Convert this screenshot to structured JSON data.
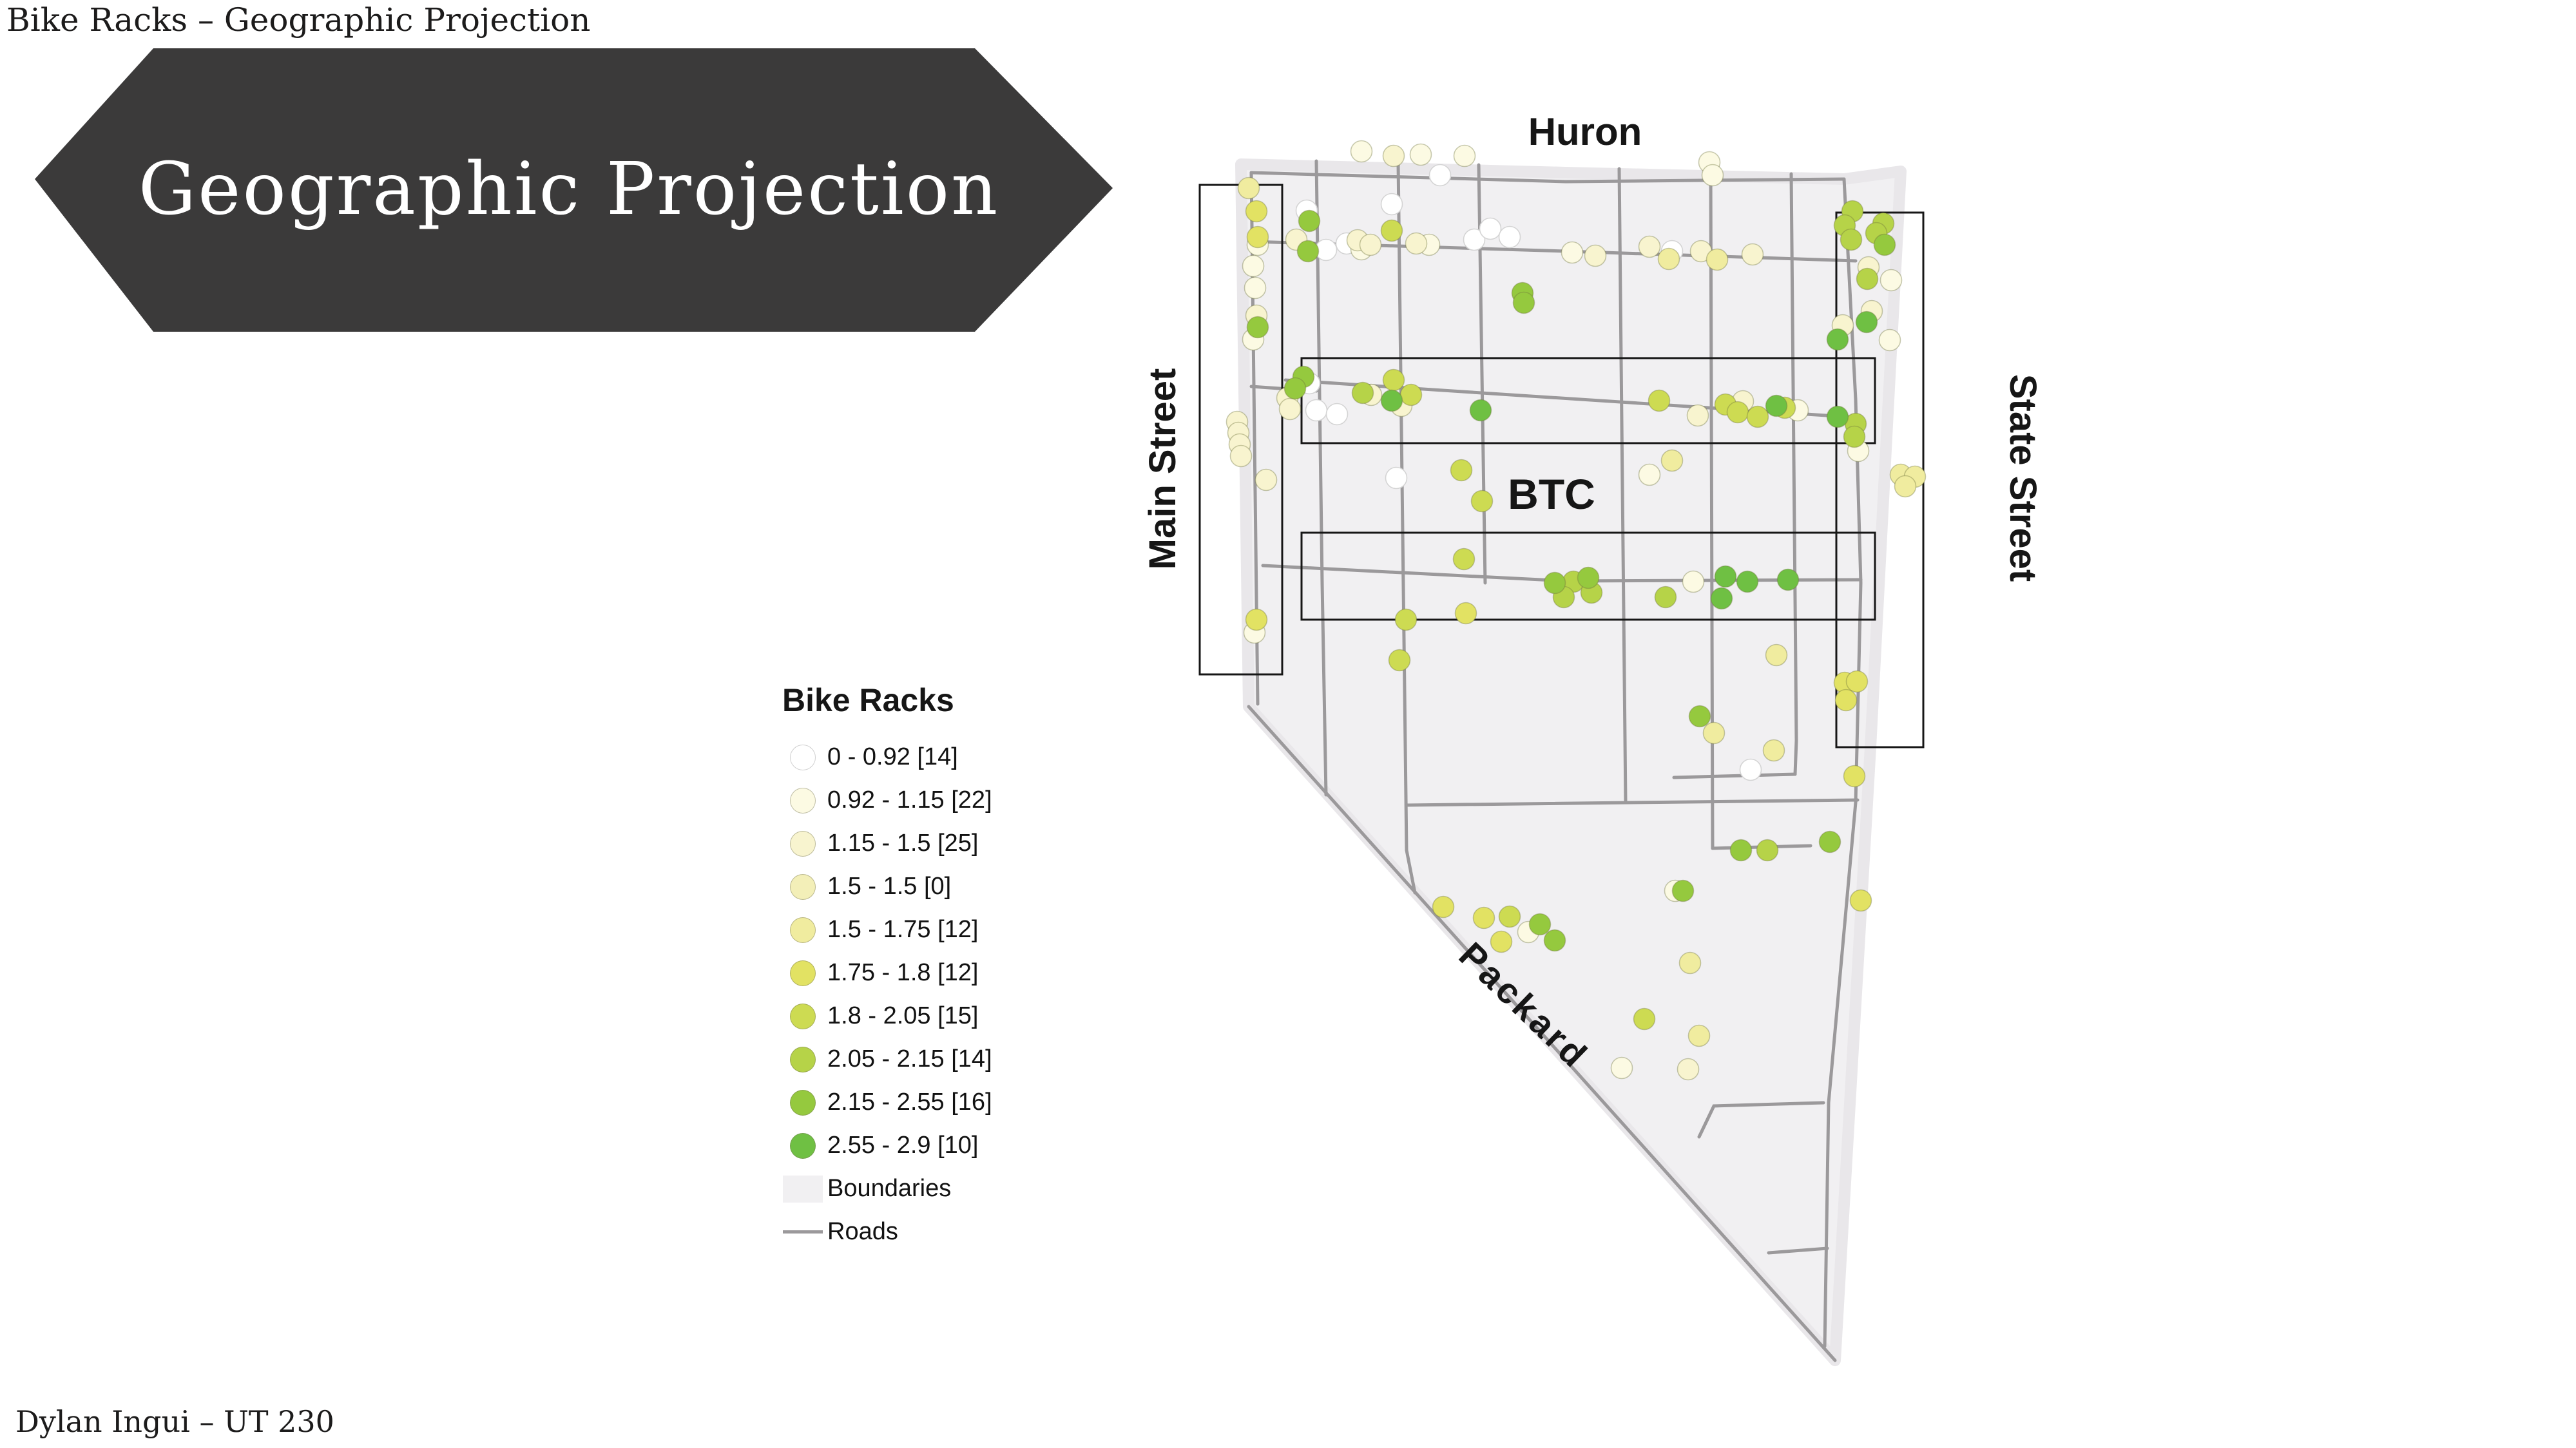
{
  "page": {
    "title": "Bike Racks – Geographic Projection",
    "credit": "Dylan Ingui – UT 230"
  },
  "banner": {
    "text": "Geographic Projection",
    "bg_color": "#3b3a3a",
    "text_color": "#ffffff"
  },
  "legend": {
    "title": "Bike Racks",
    "items": [
      {
        "type": "circle",
        "label": "0 - 0.92 [14]",
        "color": "#ffffff",
        "range_min": 0,
        "range_max": 0.92,
        "count": 14
      },
      {
        "type": "circle",
        "label": "0.92 - 1.15 [22]",
        "color": "#fcfae3",
        "range_min": 0.92,
        "range_max": 1.15,
        "count": 22
      },
      {
        "type": "circle",
        "label": "1.15 - 1.5 [25]",
        "color": "#f8f4cf",
        "range_min": 1.15,
        "range_max": 1.5,
        "count": 25
      },
      {
        "type": "circle",
        "label": "1.5 - 1.5 [0]",
        "color": "#f3efb8",
        "range_min": 1.5,
        "range_max": 1.5,
        "count": 0
      },
      {
        "type": "circle",
        "label": "1.5 - 1.75 [12]",
        "color": "#f0ec9f",
        "range_min": 1.5,
        "range_max": 1.75,
        "count": 12
      },
      {
        "type": "circle",
        "label": "1.75 - 1.8 [12]",
        "color": "#e2e263",
        "range_min": 1.75,
        "range_max": 1.8,
        "count": 12
      },
      {
        "type": "circle",
        "label": "1.8 - 2.05 [15]",
        "color": "#cddb52",
        "range_min": 1.8,
        "range_max": 2.05,
        "count": 15
      },
      {
        "type": "circle",
        "label": "2.05 - 2.15 [14]",
        "color": "#b6d348",
        "range_min": 2.05,
        "range_max": 2.15,
        "count": 14
      },
      {
        "type": "circle",
        "label": "2.15 - 2.55 [16]",
        "color": "#95c93e",
        "range_min": 2.15,
        "range_max": 2.55,
        "count": 16
      },
      {
        "type": "circle",
        "label": "2.55 - 2.9 [10]",
        "color": "#6fc043",
        "range_min": 2.55,
        "range_max": 2.9,
        "count": 10
      },
      {
        "type": "rect",
        "label": "Boundaries",
        "color": "#f1f0f2"
      },
      {
        "type": "line",
        "label": "Roads",
        "color": "#9b999b"
      }
    ]
  },
  "map": {
    "labels": [
      {
        "id": "huron",
        "text": "Huron"
      },
      {
        "id": "main-street",
        "text": "Main Street"
      },
      {
        "id": "state-street",
        "text": "State Street"
      },
      {
        "id": "btc",
        "text": "BTC"
      },
      {
        "id": "packard",
        "text": "Packard"
      }
    ],
    "dot_radius": 16.5,
    "dots": [
      [
        2235,
        272,
        0
      ],
      [
        2058,
        388,
        0
      ],
      [
        2090,
        378,
        0
      ],
      [
        2288,
        372,
        0
      ],
      [
        2313,
        355,
        0
      ],
      [
        2028,
        327,
        0
      ],
      [
        2160,
        317,
        0
      ],
      [
        2032,
        595,
        0
      ],
      [
        2043,
        637,
        0
      ],
      [
        2075,
        643,
        0
      ],
      [
        2717,
        1195,
        0
      ],
      [
        2343,
        368,
        0
      ],
      [
        2167,
        742,
        0
      ],
      [
        2595,
        390,
        0
      ],
      [
        2113,
        235,
        1
      ],
      [
        2205,
        240,
        1
      ],
      [
        2273,
        242,
        1
      ],
      [
        2653,
        252,
        1
      ],
      [
        2658,
        272,
        1
      ],
      [
        2113,
        387,
        1
      ],
      [
        2218,
        380,
        1
      ],
      [
        2440,
        392,
        1
      ],
      [
        1952,
        380,
        1
      ],
      [
        1945,
        413,
        1
      ],
      [
        1948,
        447,
        1
      ],
      [
        1945,
        527,
        1
      ],
      [
        1947,
        982,
        1
      ],
      [
        2790,
        637,
        1
      ],
      [
        2560,
        737,
        1
      ],
      [
        2884,
        700,
        1
      ],
      [
        2628,
        903,
        1
      ],
      [
        2935,
        435,
        1
      ],
      [
        2933,
        528,
        1
      ],
      [
        2600,
        1383,
        1
      ],
      [
        2372,
        1447,
        1
      ],
      [
        2517,
        1658,
        1
      ],
      [
        2012,
        372,
        2
      ],
      [
        2107,
        373,
        2
      ],
      [
        2127,
        380,
        2
      ],
      [
        2198,
        378,
        2
      ],
      [
        2560,
        383,
        2
      ],
      [
        2640,
        390,
        2
      ],
      [
        2720,
        395,
        2
      ],
      [
        1950,
        490,
        2
      ],
      [
        1920,
        655,
        2
      ],
      [
        1922,
        672,
        2
      ],
      [
        1924,
        690,
        2
      ],
      [
        1926,
        708,
        2
      ],
      [
        1965,
        745,
        2
      ],
      [
        1998,
        618,
        2
      ],
      [
        2002,
        635,
        2
      ],
      [
        2128,
        613,
        2
      ],
      [
        2175,
        630,
        2
      ],
      [
        2635,
        645,
        2
      ],
      [
        2705,
        623,
        2
      ],
      [
        2860,
        505,
        2
      ],
      [
        2900,
        415,
        2
      ],
      [
        2905,
        483,
        2
      ],
      [
        2620,
        1660,
        2
      ],
      [
        2476,
        397,
        2
      ],
      [
        2163,
        242,
        2
      ],
      [
        1938,
        292,
        4
      ],
      [
        2950,
        737,
        4
      ],
      [
        2757,
        1017,
        4
      ],
      [
        2660,
        1138,
        4
      ],
      [
        2753,
        1165,
        4
      ],
      [
        2623,
        1495,
        4
      ],
      [
        2637,
        1608,
        4
      ],
      [
        2590,
        402,
        4
      ],
      [
        2665,
        403,
        4
      ],
      [
        2595,
        715,
        4
      ],
      [
        2972,
        740,
        4
      ],
      [
        2957,
        755,
        4
      ],
      [
        1950,
        328,
        5
      ],
      [
        1952,
        368,
        5
      ],
      [
        1950,
        962,
        5
      ],
      [
        2275,
        952,
        5
      ],
      [
        2863,
        1060,
        5
      ],
      [
        2882,
        1058,
        5
      ],
      [
        2865,
        1087,
        5
      ],
      [
        2878,
        1205,
        5
      ],
      [
        2888,
        1398,
        5
      ],
      [
        2303,
        1425,
        5
      ],
      [
        2330,
        1462,
        5
      ],
      [
        2240,
        1408,
        5
      ],
      [
        2160,
        358,
        6
      ],
      [
        2575,
        622,
        6
      ],
      [
        2678,
        628,
        6
      ],
      [
        2697,
        640,
        6
      ],
      [
        2728,
        647,
        6
      ],
      [
        2770,
        633,
        6
      ],
      [
        2163,
        590,
        6
      ],
      [
        2190,
        613,
        6
      ],
      [
        2268,
        730,
        6
      ],
      [
        2300,
        778,
        6
      ],
      [
        2272,
        868,
        6
      ],
      [
        2182,
        962,
        6
      ],
      [
        2172,
        1025,
        6
      ],
      [
        2552,
        1582,
        6
      ],
      [
        2343,
        1423,
        6
      ],
      [
        2875,
        328,
        7
      ],
      [
        2863,
        350,
        7
      ],
      [
        2873,
        372,
        7
      ],
      [
        2115,
        610,
        7
      ],
      [
        2442,
        903,
        7
      ],
      [
        2427,
        927,
        7
      ],
      [
        2585,
        927,
        7
      ],
      [
        2470,
        920,
        7
      ],
      [
        2923,
        347,
        7
      ],
      [
        2912,
        362,
        7
      ],
      [
        2898,
        433,
        7
      ],
      [
        2880,
        658,
        7
      ],
      [
        2878,
        678,
        7
      ],
      [
        2743,
        1320,
        7
      ],
      [
        2030,
        390,
        8
      ],
      [
        2363,
        455,
        8
      ],
      [
        2365,
        470,
        8
      ],
      [
        1952,
        508,
        8
      ],
      [
        2032,
        343,
        8
      ],
      [
        2023,
        585,
        8
      ],
      [
        2010,
        603,
        8
      ],
      [
        2702,
        1320,
        8
      ],
      [
        2612,
        1383,
        8
      ],
      [
        2413,
        905,
        8
      ],
      [
        2465,
        897,
        8
      ],
      [
        2840,
        1307,
        8
      ],
      [
        2390,
        1435,
        8
      ],
      [
        2413,
        1460,
        8
      ],
      [
        2638,
        1112,
        8
      ],
      [
        2925,
        380,
        8
      ],
      [
        2160,
        622,
        9
      ],
      [
        2298,
        637,
        9
      ],
      [
        2757,
        630,
        9
      ],
      [
        2852,
        647,
        9
      ],
      [
        2678,
        895,
        9
      ],
      [
        2672,
        929,
        9
      ],
      [
        2712,
        903,
        9
      ],
      [
        2775,
        900,
        9
      ],
      [
        2852,
        527,
        9
      ],
      [
        2897,
        500,
        9
      ]
    ]
  },
  "chart_data": {
    "type": "scatter",
    "title": "Bike Racks",
    "legend_position": "left",
    "bins": [
      "0 - 0.92",
      "0.92 - 1.15",
      "1.15 - 1.5",
      "1.5 - 1.5",
      "1.5 - 1.75",
      "1.75 - 1.8",
      "1.8 - 2.05",
      "2.05 - 2.15",
      "2.15 - 2.55",
      "2.55 - 2.9"
    ],
    "bin_counts": [
      14,
      22,
      25,
      0,
      12,
      12,
      15,
      14,
      16,
      10
    ],
    "total_points": 140,
    "other_layers": [
      "Boundaries",
      "Roads"
    ],
    "street_annotations": [
      "Huron",
      "Main Street",
      "State Street",
      "BTC",
      "Packard"
    ]
  }
}
